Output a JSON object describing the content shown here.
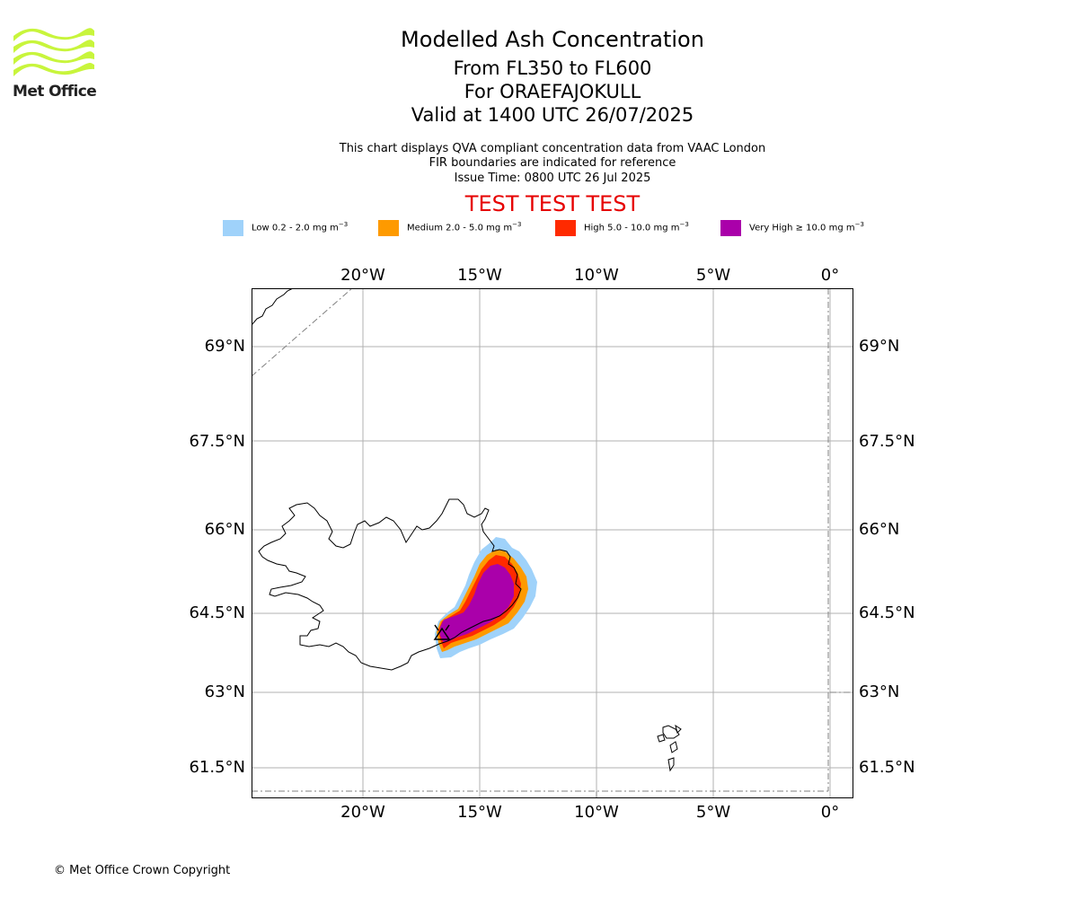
{
  "header": {
    "logo_text": "Met Office",
    "title_line1": "Modelled Ash Concentration",
    "title_line2": "From FL350 to FL600",
    "title_line3": "For ORAEFAJOKULL",
    "title_line4": "Valid at 1400 UTC 26/07/2025",
    "subtitle_line1": "This chart displays QVA compliant concentration data from VAAC London",
    "subtitle_line2": "FIR boundaries are indicated for reference",
    "subtitle_line3": "Issue Time: 0800 UTC 26 Jul 2025",
    "test_banner": "TEST TEST TEST"
  },
  "legend": [
    {
      "label": "Low 0.2 - 2.0 mg m",
      "unit_exp": "−3",
      "color": "#9fd2fa"
    },
    {
      "label": "Medium 2.0 - 5.0 mg m",
      "unit_exp": "−3",
      "color": "#fe9a00"
    },
    {
      "label": "High 5.0 - 10.0 mg m",
      "unit_exp": "−3",
      "color": "#ff2a00"
    },
    {
      "label": "Very High ≥ 10.0 mg m",
      "unit_exp": "−3",
      "color": "#aa00aa"
    }
  ],
  "map": {
    "lon_labels": [
      "20°W",
      "15°W",
      "10°W",
      "5°W",
      "0°"
    ],
    "lat_labels": [
      "69°N",
      "67.5°N",
      "66°N",
      "64.5°N",
      "63°N",
      "61.5°N"
    ],
    "volcano_marker": "triangle-icon",
    "colors": {
      "gridline": "#b0b0b0",
      "coastline": "#000000",
      "fir_boundary": "#808080"
    }
  },
  "footer": {
    "copyright": "© Met Office Crown Copyright"
  }
}
